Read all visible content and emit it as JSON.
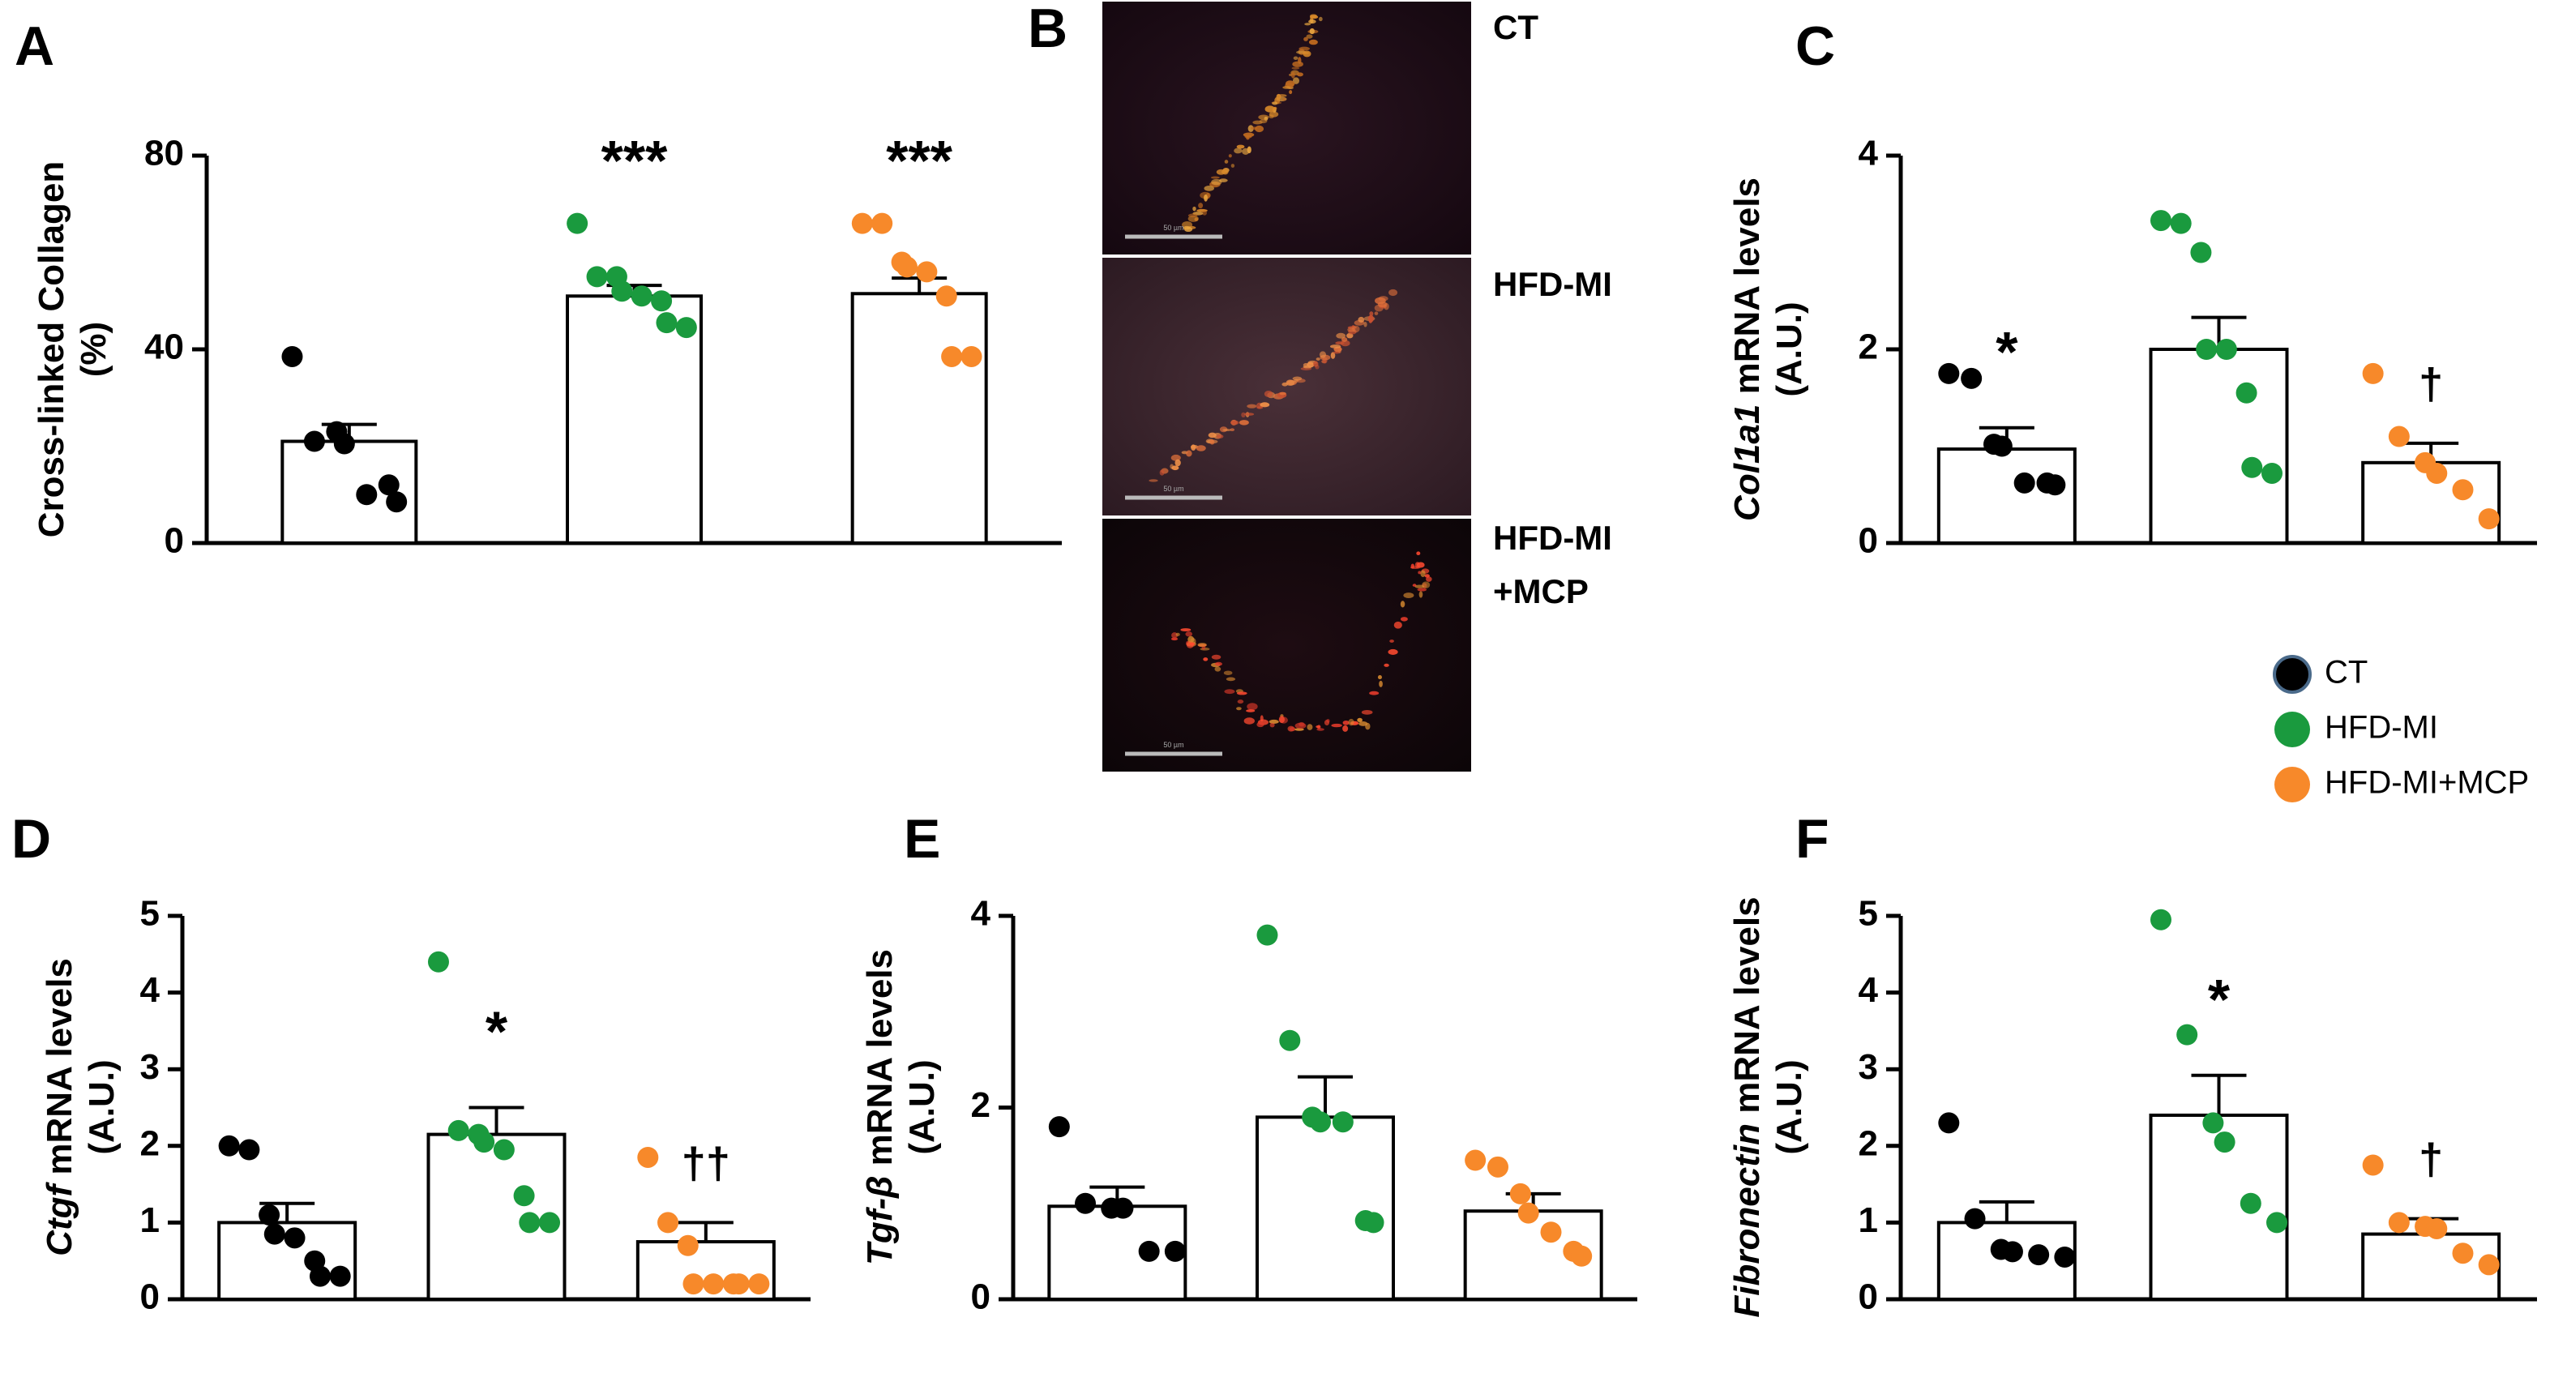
{
  "colors": {
    "CT": "#000000",
    "HFD-MI": "#1a9a3e",
    "HFD-MI+MCP": "#f7892a"
  },
  "legend": [
    {
      "label": "CT",
      "color": "#000000"
    },
    {
      "label": "HFD-MI",
      "color": "#1a9a3e"
    },
    {
      "label": "HFD-MI+MCP",
      "color": "#f7892a"
    }
  ],
  "micrograph": {
    "letter": "B",
    "labels": [
      "CT",
      "HFD-MI",
      "HFD-MI\n+MCP"
    ],
    "scale_bar_text": "50 µm"
  },
  "chart_data": [
    {
      "id": "A",
      "letter": "A",
      "type": "bar",
      "ylabel": "Cross-linked Collagen\n(%)",
      "ylim": [
        0,
        80
      ],
      "yticks": [
        0,
        40,
        80
      ],
      "groups": [
        "CT",
        "HFD-MI",
        "HFD-MI+MCP"
      ],
      "means": [
        21,
        51,
        51.5
      ],
      "sem": [
        3.5,
        2.2,
        3.2
      ],
      "points": [
        [
          38.5,
          21,
          23,
          20.5,
          10,
          12,
          8.5
        ],
        [
          66,
          55,
          55,
          52,
          51,
          50,
          45.5,
          44.5
        ],
        [
          66,
          66,
          58,
          57,
          56,
          51,
          38.5,
          38.5
        ]
      ],
      "sig": [
        "",
        "***",
        "***"
      ]
    },
    {
      "id": "C",
      "letter": "C",
      "type": "bar",
      "ylabel_italic": "Col1a1",
      "ylabel_rest": " mRNA levels",
      "ylabel2": "(A.U.)",
      "ylim": [
        0,
        4
      ],
      "yticks": [
        0,
        2,
        4
      ],
      "groups": [
        "CT",
        "HFD-MI",
        "HFD-MI+MCP"
      ],
      "means": [
        0.97,
        2.0,
        0.83
      ],
      "sem": [
        0.22,
        0.33,
        0.2
      ],
      "points": [
        [
          1.75,
          1.7,
          1.02,
          1.0,
          0.62,
          0.62,
          0.6
        ],
        [
          3.33,
          3.3,
          3.0,
          2.0,
          2.0,
          1.55,
          0.78,
          0.72
        ],
        [
          1.75,
          1.1,
          0.83,
          0.72,
          0.55,
          0.25
        ]
      ],
      "sig": [
        "*",
        "",
        "†"
      ]
    },
    {
      "id": "D",
      "letter": "D",
      "type": "bar",
      "ylabel_italic": "Ctgf",
      "ylabel_rest": " mRNA levels",
      "ylabel2": "(A.U.)",
      "ylim": [
        0,
        5
      ],
      "yticks": [
        0,
        1,
        2,
        3,
        4,
        5
      ],
      "groups": [
        "CT",
        "HFD-MI",
        "HFD-MI+MCP"
      ],
      "means": [
        1.0,
        2.15,
        0.75
      ],
      "sem": [
        0.25,
        0.35,
        0.25
      ],
      "points": [
        [
          2.0,
          1.95,
          1.1,
          0.85,
          0.8,
          0.5,
          0.3,
          0.3
        ],
        [
          4.4,
          2.2,
          2.15,
          2.05,
          1.95,
          1.35,
          1.0,
          1.0
        ],
        [
          1.85,
          1.0,
          0.7,
          0.2,
          0.2,
          0.2,
          0.2,
          0.2
        ]
      ],
      "sig": [
        "",
        "*",
        "††"
      ]
    },
    {
      "id": "E",
      "letter": "E",
      "type": "bar",
      "ylabel_italic": "Tgf-β",
      "ylabel_rest": " mRNA levels",
      "ylabel2": "(A.U.)",
      "ylim": [
        0,
        4
      ],
      "yticks": [
        0,
        2,
        4
      ],
      "groups": [
        "CT",
        "HFD-MI",
        "HFD-MI+MCP"
      ],
      "means": [
        0.97,
        1.9,
        0.92
      ],
      "sem": [
        0.2,
        0.42,
        0.18
      ],
      "points": [
        [
          1.8,
          1.0,
          0.95,
          0.95,
          0.5,
          0.5
        ],
        [
          3.8,
          2.7,
          1.9,
          1.85,
          1.85,
          0.82,
          0.8
        ],
        [
          1.45,
          1.38,
          1.1,
          0.9,
          0.7,
          0.5,
          0.45
        ]
      ],
      "sig": [
        "",
        "",
        ""
      ]
    },
    {
      "id": "F",
      "letter": "F",
      "type": "bar",
      "ylabel_italic": "Fibronectin",
      "ylabel_rest": " mRNA levels",
      "ylabel2": "(A.U.)",
      "ylim": [
        0,
        5
      ],
      "yticks": [
        0,
        1,
        2,
        3,
        4,
        5
      ],
      "groups": [
        "CT",
        "HFD-MI",
        "HFD-MI+MCP"
      ],
      "means": [
        1.0,
        2.4,
        0.85
      ],
      "sem": [
        0.27,
        0.52,
        0.2
      ],
      "points": [
        [
          2.3,
          1.05,
          0.65,
          0.62,
          0.58,
          0.55
        ],
        [
          4.95,
          3.45,
          2.3,
          2.05,
          1.25,
          1.0
        ],
        [
          1.75,
          1.0,
          0.95,
          0.92,
          0.6,
          0.45
        ]
      ],
      "sig": [
        "",
        "*",
        "†"
      ]
    }
  ]
}
